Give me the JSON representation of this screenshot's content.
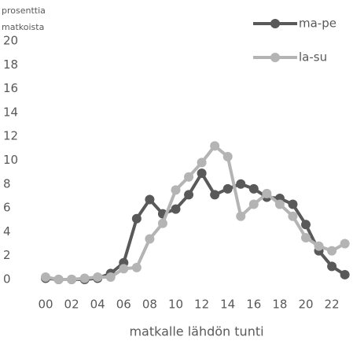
{
  "chart_data": {
    "type": "line",
    "y_label": [
      "prosenttia",
      "matkoista"
    ],
    "x_label": "matkalle lähdön tunti",
    "categories": [
      "00",
      null,
      "02",
      null,
      "04",
      null,
      "06",
      null,
      "08",
      null,
      "10",
      null,
      "12",
      null,
      "14",
      null,
      "16",
      null,
      "18",
      null,
      "20",
      null,
      "22",
      null
    ],
    "series": [
      {
        "name": "ma-pe",
        "color": "#595959",
        "values": [
          0.1,
          0,
          0,
          0,
          0.1,
          0.5,
          1.4,
          5.1,
          6.7,
          5.5,
          5.9,
          7.1,
          8.9,
          7.1,
          7.6,
          8.0,
          7.6,
          6.9,
          6.8,
          6.3,
          4.6,
          2.4,
          1.1,
          0.4
        ]
      },
      {
        "name": "la-su",
        "color": "#b4b4b4",
        "values": [
          0.2,
          0,
          0,
          0.1,
          0.2,
          0.2,
          0.9,
          1.0,
          3.4,
          4.7,
          7.5,
          8.6,
          9.8,
          11.2,
          10.3,
          5.3,
          6.3,
          7.2,
          6.3,
          5.3,
          3.5,
          2.8,
          2.4,
          3.0
        ]
      }
    ],
    "ylim": [
      0,
      20
    ],
    "yticks": [
      0,
      2,
      4,
      6,
      8,
      10,
      12,
      14,
      16,
      18,
      20
    ],
    "grid": false,
    "legend": "top-right"
  }
}
